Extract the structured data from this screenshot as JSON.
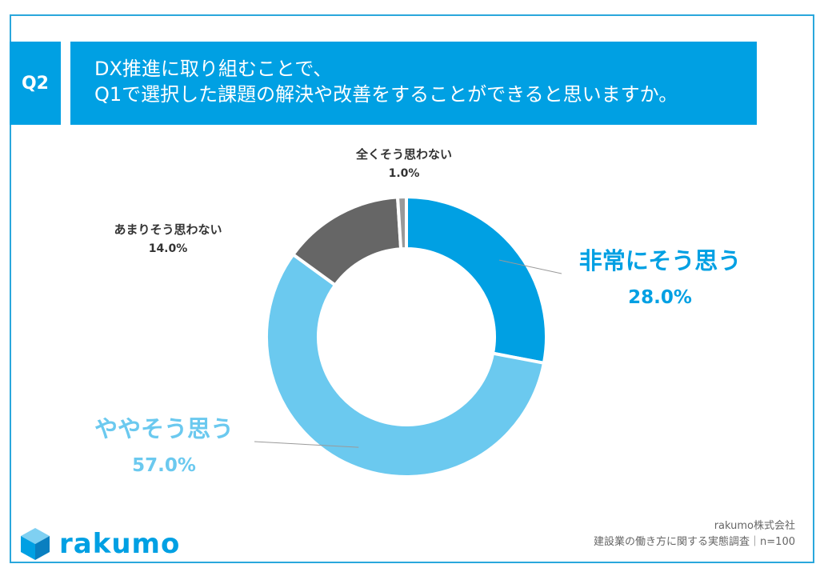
{
  "question": {
    "badge": "Q2",
    "line1": "DX推進に取り組むことで、",
    "line2": "Q1で選択した課題の解決や改善をすることができると思いますか。"
  },
  "chart_data": {
    "type": "pie",
    "donut": true,
    "slices": [
      {
        "label": "非常にそう思う",
        "value": 28.0,
        "pct_label": "28.0%",
        "color": "#00a0e3"
      },
      {
        "label": "ややそう思う",
        "value": 57.0,
        "pct_label": "57.0%",
        "color": "#6bc9ef"
      },
      {
        "label": "あまりそう思わない",
        "value": 14.0,
        "pct_label": "14.0%",
        "color": "#666666"
      },
      {
        "label": "全くそう思わない",
        "value": 1.0,
        "pct_label": "1.0%",
        "color": "#999999"
      }
    ]
  },
  "footer": {
    "company": "rakumo株式会社",
    "survey": "建設業の働き方に関する実態調査｜n=100"
  },
  "logo": {
    "text": "rakumo",
    "color": "#00a0e3"
  }
}
